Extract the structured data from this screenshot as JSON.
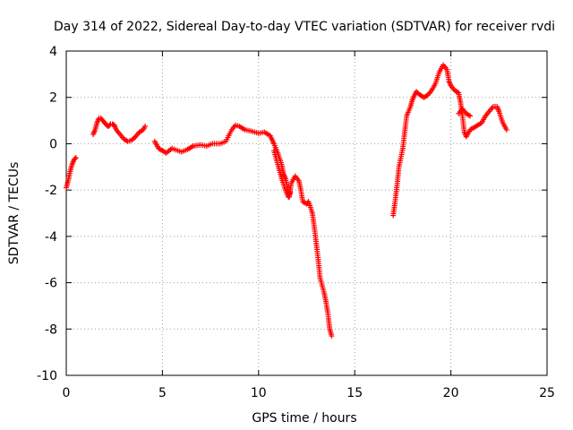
{
  "chart_data": {
    "type": "scatter",
    "title": "Day 314 of 2022, Sidereal Day-to-day VTEC variation (SDTVAR) for receiver rvdi",
    "xlabel": "GPS time / hours",
    "ylabel": "SDTVAR / TECUs",
    "xlim": [
      0,
      25
    ],
    "ylim": [
      -10,
      4
    ],
    "xticks": [
      0,
      5,
      10,
      15,
      20,
      25
    ],
    "yticks": [
      -10,
      -8,
      -6,
      -4,
      -2,
      0,
      2,
      4
    ],
    "grid": true,
    "marker": "+",
    "color": "#ff0000",
    "segments": [
      [
        [
          0.0,
          -1.9
        ],
        [
          0.1,
          -1.6
        ],
        [
          0.2,
          -1.2
        ],
        [
          0.3,
          -0.9
        ],
        [
          0.4,
          -0.7
        ],
        [
          0.5,
          -0.6
        ]
      ],
      [
        [
          1.4,
          0.4
        ],
        [
          1.5,
          0.6
        ],
        [
          1.6,
          0.9
        ],
        [
          1.7,
          1.1
        ],
        [
          1.8,
          1.1
        ],
        [
          1.9,
          1.0
        ],
        [
          2.0,
          0.9
        ],
        [
          2.1,
          0.8
        ],
        [
          2.2,
          0.75
        ],
        [
          2.3,
          0.85
        ],
        [
          2.4,
          0.85
        ],
        [
          2.5,
          0.8
        ],
        [
          2.6,
          0.6
        ],
        [
          2.8,
          0.4
        ],
        [
          3.0,
          0.2
        ],
        [
          3.2,
          0.1
        ],
        [
          3.4,
          0.15
        ],
        [
          3.6,
          0.3
        ],
        [
          3.8,
          0.5
        ],
        [
          4.0,
          0.6
        ],
        [
          4.1,
          0.75
        ]
      ],
      [
        [
          4.6,
          0.1
        ],
        [
          4.8,
          -0.2
        ],
        [
          5.0,
          -0.3
        ],
        [
          5.2,
          -0.4
        ],
        [
          5.5,
          -0.2
        ],
        [
          5.8,
          -0.3
        ],
        [
          6.0,
          -0.35
        ],
        [
          6.3,
          -0.25
        ],
        [
          6.6,
          -0.1
        ],
        [
          7.0,
          -0.05
        ],
        [
          7.3,
          -0.1
        ],
        [
          7.6,
          0.0
        ],
        [
          8.0,
          0.0
        ],
        [
          8.3,
          0.1
        ],
        [
          8.6,
          0.6
        ],
        [
          8.8,
          0.8
        ],
        [
          9.0,
          0.75
        ],
        [
          9.3,
          0.6
        ],
        [
          9.6,
          0.55
        ],
        [
          10.0,
          0.45
        ],
        [
          10.3,
          0.5
        ],
        [
          10.6,
          0.35
        ],
        [
          10.8,
          0.0
        ],
        [
          11.0,
          -0.4
        ],
        [
          11.2,
          -0.9
        ],
        [
          11.3,
          -1.3
        ],
        [
          11.4,
          -1.5
        ],
        [
          11.5,
          -1.9
        ],
        [
          11.6,
          -2.3
        ],
        [
          11.7,
          -1.7
        ],
        [
          11.9,
          -1.4
        ],
        [
          12.1,
          -1.6
        ],
        [
          12.2,
          -2.0
        ],
        [
          12.3,
          -2.5
        ],
        [
          12.5,
          -2.6
        ],
        [
          12.6,
          -2.5
        ],
        [
          12.8,
          -3.0
        ],
        [
          12.9,
          -3.6
        ],
        [
          13.0,
          -4.3
        ],
        [
          13.1,
          -5.0
        ],
        [
          13.2,
          -5.8
        ],
        [
          13.4,
          -6.4
        ],
        [
          13.5,
          -6.8
        ],
        [
          13.6,
          -7.3
        ],
        [
          13.7,
          -8.0
        ],
        [
          13.8,
          -8.3
        ]
      ],
      [
        [
          10.8,
          -0.3
        ],
        [
          11.0,
          -0.9
        ],
        [
          11.2,
          -1.5
        ],
        [
          11.4,
          -2.0
        ],
        [
          11.55,
          -2.3
        ],
        [
          11.65,
          -2.1
        ]
      ],
      [
        [
          17.0,
          -3.1
        ],
        [
          17.1,
          -2.5
        ],
        [
          17.2,
          -1.8
        ],
        [
          17.3,
          -1.0
        ],
        [
          17.5,
          -0.2
        ],
        [
          17.6,
          0.5
        ],
        [
          17.7,
          1.2
        ],
        [
          17.9,
          1.6
        ],
        [
          18.0,
          1.9
        ],
        [
          18.2,
          2.25
        ],
        [
          18.4,
          2.1
        ],
        [
          18.6,
          2.0
        ],
        [
          18.8,
          2.1
        ],
        [
          19.0,
          2.3
        ],
        [
          19.2,
          2.6
        ],
        [
          19.4,
          3.1
        ],
        [
          19.6,
          3.4
        ],
        [
          19.8,
          3.2
        ],
        [
          19.9,
          2.7
        ],
        [
          20.0,
          2.5
        ],
        [
          20.2,
          2.3
        ],
        [
          20.4,
          2.2
        ],
        [
          20.5,
          1.8
        ],
        [
          20.6,
          1.2
        ],
        [
          20.7,
          0.5
        ],
        [
          20.8,
          0.3
        ],
        [
          21.0,
          0.6
        ],
        [
          21.2,
          0.7
        ],
        [
          21.4,
          0.8
        ],
        [
          21.6,
          0.9
        ],
        [
          21.8,
          1.2
        ],
        [
          22.0,
          1.4
        ],
        [
          22.2,
          1.6
        ],
        [
          22.4,
          1.6
        ],
        [
          22.5,
          1.4
        ],
        [
          22.7,
          0.9
        ],
        [
          22.9,
          0.6
        ]
      ],
      [
        [
          20.4,
          1.3
        ],
        [
          20.6,
          1.5
        ],
        [
          20.8,
          1.3
        ],
        [
          21.0,
          1.2
        ]
      ]
    ]
  }
}
